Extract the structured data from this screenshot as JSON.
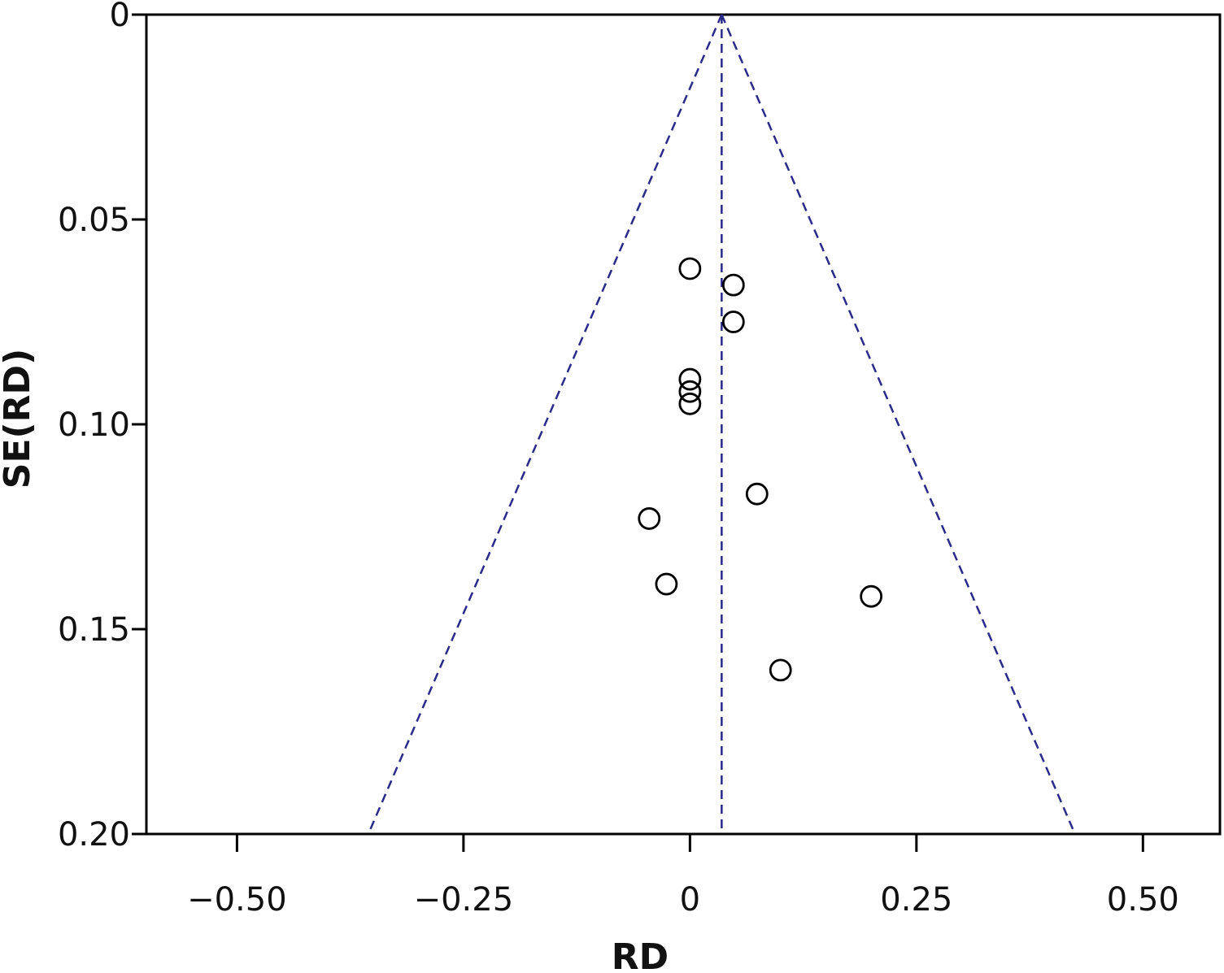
{
  "chart_data": {
    "type": "scatter",
    "title": "",
    "xlabel": "RD",
    "ylabel": "SE(RD)",
    "xlim": [
      -0.6,
      0.585
    ],
    "ylim": [
      0,
      0.2
    ],
    "y_inverted": true,
    "grid": false,
    "legend": "none",
    "x_ticks": [
      {
        "value": -0.5,
        "label": "−0.50"
      },
      {
        "value": -0.25,
        "label": "−0.25"
      },
      {
        "value": 0,
        "label": "0"
      },
      {
        "value": 0.25,
        "label": "0.25"
      },
      {
        "value": 0.5,
        "label": "0.50"
      }
    ],
    "y_ticks": [
      {
        "value": 0,
        "label": "0"
      },
      {
        "value": 0.05,
        "label": "0.05"
      },
      {
        "value": 0.1,
        "label": "0.10"
      },
      {
        "value": 0.15,
        "label": "0.15"
      },
      {
        "value": 0.2,
        "label": "0.20"
      }
    ],
    "pooled_effect": 0.035,
    "funnel_lines": {
      "apex": [
        0.035,
        0
      ],
      "left_bottom": [
        -0.355,
        0.2
      ],
      "right_bottom": [
        0.425,
        0.2
      ]
    },
    "points": [
      {
        "x": 0.0,
        "y": 0.062
      },
      {
        "x": 0.048,
        "y": 0.066
      },
      {
        "x": 0.048,
        "y": 0.075
      },
      {
        "x": 0.0,
        "y": 0.089
      },
      {
        "x": 0.0,
        "y": 0.092
      },
      {
        "x": 0.0,
        "y": 0.095
      },
      {
        "x": 0.074,
        "y": 0.117
      },
      {
        "x": -0.045,
        "y": 0.123
      },
      {
        "x": -0.026,
        "y": 0.139
      },
      {
        "x": 0.2,
        "y": 0.142
      },
      {
        "x": 0.1,
        "y": 0.16
      }
    ],
    "colors": {
      "axis": "#000000",
      "funnel": "#2a2a8a",
      "marker": "#000000"
    }
  }
}
